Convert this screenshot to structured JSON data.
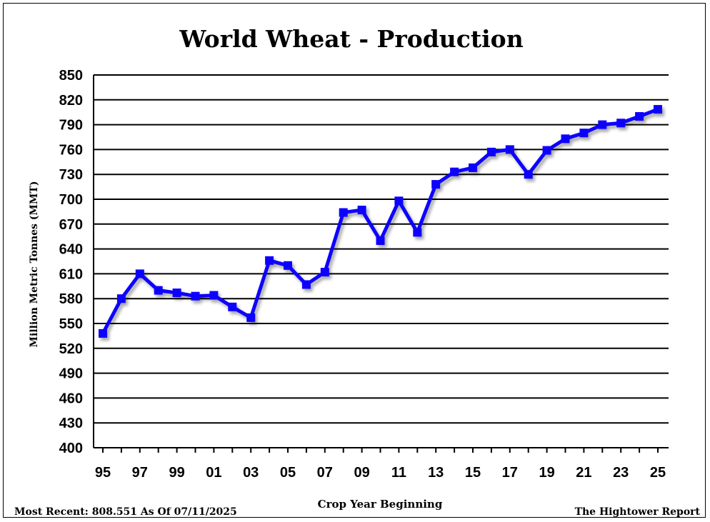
{
  "chart_data": {
    "type": "line",
    "title": "World Wheat - Production",
    "ylabel": "Million Metric Tonnes (MMT)",
    "xlabel": "Crop Year Beginning",
    "ylim": [
      400,
      850
    ],
    "yticks": [
      400,
      430,
      460,
      490,
      520,
      550,
      580,
      610,
      640,
      670,
      700,
      730,
      760,
      790,
      820,
      850
    ],
    "xlim": [
      1995,
      2025
    ],
    "xticks": [
      {
        "x": 1995,
        "label": "95"
      },
      {
        "x": 1997,
        "label": "97"
      },
      {
        "x": 1999,
        "label": "99"
      },
      {
        "x": 2001,
        "label": "01"
      },
      {
        "x": 2003,
        "label": "03"
      },
      {
        "x": 2005,
        "label": "05"
      },
      {
        "x": 2007,
        "label": "07"
      },
      {
        "x": 2009,
        "label": "09"
      },
      {
        "x": 2011,
        "label": "11"
      },
      {
        "x": 2013,
        "label": "13"
      },
      {
        "x": 2015,
        "label": "15"
      },
      {
        "x": 2017,
        "label": "17"
      },
      {
        "x": 2019,
        "label": "19"
      },
      {
        "x": 2021,
        "label": "21"
      },
      {
        "x": 2023,
        "label": "23"
      },
      {
        "x": 2025,
        "label": "25"
      }
    ],
    "grid": true,
    "series": [
      {
        "color": "#0a00ff",
        "x": [
          1995,
          1996,
          1997,
          1998,
          1999,
          2000,
          2001,
          2002,
          2003,
          2004,
          2005,
          2006,
          2007,
          2008,
          2009,
          2010,
          2011,
          2012,
          2013,
          2014,
          2015,
          2016,
          2017,
          2018,
          2019,
          2020,
          2021,
          2022,
          2023,
          2024,
          2025
        ],
        "values": [
          538,
          580,
          610,
          590,
          587,
          583,
          584,
          570,
          557,
          626,
          620,
          597,
          612,
          684,
          687,
          650,
          698,
          660,
          718,
          733,
          738,
          757,
          760,
          730,
          759,
          773,
          780,
          790,
          792,
          800,
          808.551
        ]
      }
    ]
  },
  "footer": {
    "most_recent": "Most Recent: 808.551 As Of 07/11/2025",
    "source": "The Hightower Report"
  },
  "colors": {
    "line": "#0a00ff",
    "grid": "#000000"
  }
}
